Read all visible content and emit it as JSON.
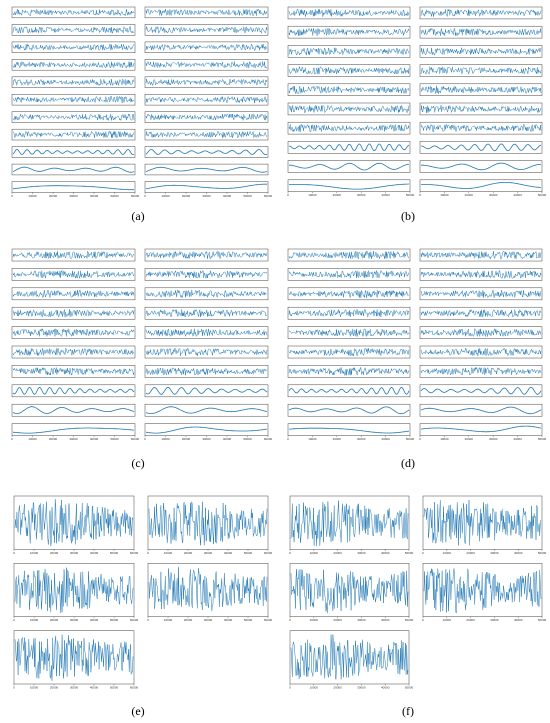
{
  "panels": [
    {
      "id": "a",
      "label": "(a)",
      "cols": 2,
      "rows": 11,
      "style": "imf-stack",
      "x_ticks": [
        "0",
        "10000",
        "20000",
        "30000",
        "40000",
        "50000",
        "60000"
      ]
    },
    {
      "id": "b",
      "label": "(b)",
      "cols": 2,
      "rows": 10,
      "style": "imf-stack",
      "x_ticks": [
        "0",
        "10000",
        "20000",
        "30000",
        "40000",
        "50000"
      ]
    },
    {
      "id": "c",
      "label": "(c)",
      "cols": 2,
      "rows": 10,
      "style": "imf-stack",
      "x_ticks": [
        "0",
        "10000",
        "20000",
        "30000",
        "40000",
        "50000",
        "60000"
      ]
    },
    {
      "id": "d",
      "label": "(d)",
      "cols": 2,
      "rows": 10,
      "style": "imf-stack",
      "x_ticks": [
        "0",
        "10000",
        "20000",
        "30000",
        "40000",
        "50000"
      ]
    },
    {
      "id": "e",
      "label": "(e)",
      "cols": 2,
      "rows": 3,
      "style": "dense-grid",
      "x_ticks": [
        "0",
        "10000",
        "20000",
        "30000",
        "40000",
        "50000",
        "60000"
      ]
    },
    {
      "id": "f",
      "label": "(f)",
      "cols": 2,
      "rows": 3,
      "style": "dense-grid",
      "x_ticks": [
        "0",
        "10000",
        "20000",
        "30000",
        "40000",
        "50000"
      ]
    }
  ],
  "colors": {
    "signal": "#1f77b4",
    "axis": "#444444"
  }
}
